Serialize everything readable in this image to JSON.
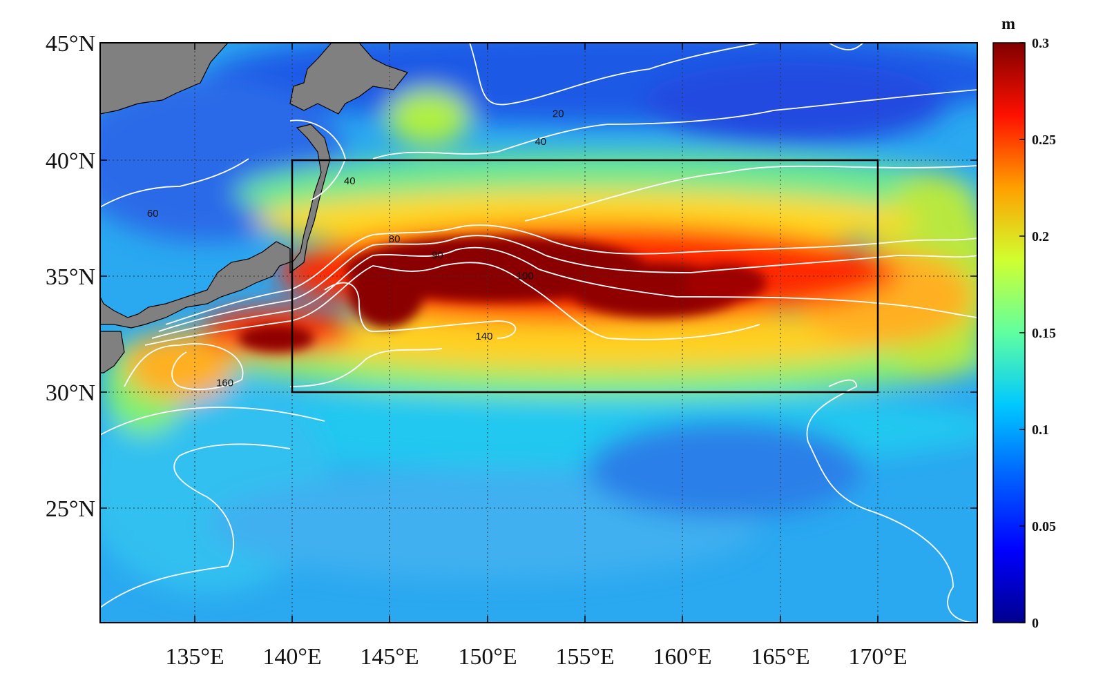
{
  "map": {
    "lat_ticks": [
      {
        "value": 45,
        "text": "45°N"
      },
      {
        "value": 40,
        "text": "40°N"
      },
      {
        "value": 35,
        "text": "35°N"
      },
      {
        "value": 30,
        "text": "30°N"
      },
      {
        "value": 25,
        "text": "25°N"
      }
    ],
    "lon_ticks": [
      {
        "value": 135,
        "text": "135°E"
      },
      {
        "value": 140,
        "text": "140°E"
      },
      {
        "value": 145,
        "text": "145°E"
      },
      {
        "value": 150,
        "text": "150°E"
      },
      {
        "value": 155,
        "text": "155°E"
      },
      {
        "value": 160,
        "text": "160°E"
      },
      {
        "value": 165,
        "text": "165°E"
      },
      {
        "value": 170,
        "text": "170°E"
      }
    ],
    "lon_range": [
      130,
      175
    ],
    "lat_range": [
      20,
      45
    ],
    "box_region": {
      "lon": [
        140,
        170
      ],
      "lat": [
        30,
        40
      ]
    },
    "contour_labels": [
      {
        "text": "20",
        "lon": 153.5,
        "lat": 41.8
      },
      {
        "text": "40",
        "lon": 152.6,
        "lat": 40.6
      },
      {
        "text": "40",
        "lon": 142.8,
        "lat": 38.9
      },
      {
        "text": "60",
        "lon": 132.7,
        "lat": 37.5
      },
      {
        "text": "80",
        "lon": 145.1,
        "lat": 36.4
      },
      {
        "text": "90",
        "lon": 147.3,
        "lat": 35.7
      },
      {
        "text": "100",
        "lon": 151.8,
        "lat": 34.8
      },
      {
        "text": "140",
        "lon": 149.7,
        "lat": 32.2
      },
      {
        "text": "160",
        "lon": 136.4,
        "lat": 30.2
      }
    ],
    "grid": "dotted",
    "land_color": "#808080"
  },
  "colorbar": {
    "unit": "m",
    "min": 0,
    "max": 0.3,
    "ticks": [
      {
        "value": 0.3,
        "text": "0.3"
      },
      {
        "value": 0.25,
        "text": "0.25"
      },
      {
        "value": 0.2,
        "text": "0.2"
      },
      {
        "value": 0.15,
        "text": "0.15"
      },
      {
        "value": 0.1,
        "text": "0.1"
      },
      {
        "value": 0.05,
        "text": "0.05"
      },
      {
        "value": 0,
        "text": "0"
      }
    ],
    "colors": [
      "#00008f",
      "#0000ff",
      "#0080ff",
      "#00ffff",
      "#80ff80",
      "#ffff00",
      "#ff8000",
      "#ff0000",
      "#800000"
    ]
  }
}
